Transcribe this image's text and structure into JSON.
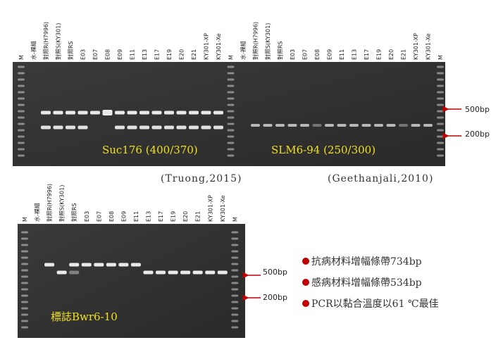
{
  "gels": [
    {
      "lanes": [
        "M",
        "水-裸組",
        "對照R(H7996)",
        "對照S(KY301)",
        "對照RS",
        "E03",
        "E07",
        "E08",
        "E09",
        "E11",
        "E13",
        "E17",
        "E19",
        "E20",
        "E21",
        "KY301-XP",
        "KY301-Xe",
        "M",
        "水-裸組",
        "對照R(H7996)",
        "對照S(KY301)",
        "對照RS",
        "E03",
        "E07",
        "E08",
        "E09",
        "E11",
        "E13",
        "E17",
        "E19",
        "E20",
        "E21",
        "KY301-XP",
        "KY301-Xe",
        "M"
      ],
      "captions": [
        "Suc176 (400/370)",
        "SLM6-94 (250/300)"
      ],
      "citations": [
        "(Truong,2015)",
        "(Geethanjali,2010)"
      ],
      "markers": [
        "500bp",
        "200bp"
      ]
    },
    {
      "lanes": [
        "M",
        "水-裸組",
        "對照R(H7996)",
        "對照S(KY301)",
        "對照RS",
        "E03",
        "E07",
        "E08",
        "E09",
        "E11",
        "E13",
        "E17",
        "E19",
        "E20",
        "E21",
        "KY301-XP",
        "KY301-Xe",
        "M"
      ],
      "captions": [
        "標誌Bwr6-10"
      ],
      "markers": [
        "500bp",
        "200bp"
      ]
    }
  ],
  "notes": [
    "抗病材料增幅條帶734bp",
    "感病材料增幅條帶534bp",
    "PCR以黏合溫度以61 ℃最佳"
  ]
}
